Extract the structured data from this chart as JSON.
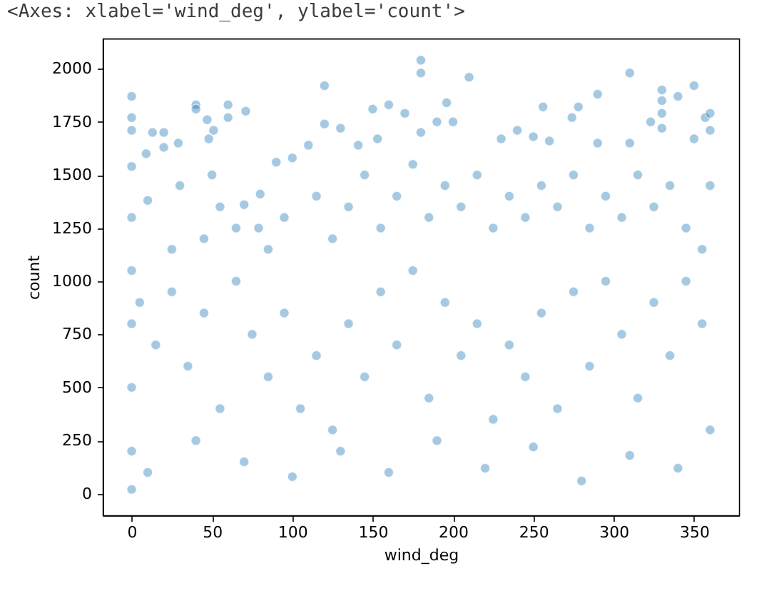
{
  "chart_data": {
    "type": "scatter",
    "xlabel": "wind_deg",
    "ylabel": "count",
    "annotations": [
      "<Axes: xlabel='wind_deg', ylabel='count'>"
    ],
    "color": "#1f77b4",
    "marker": "circle",
    "x": [
      0,
      0,
      0,
      0,
      0,
      0,
      0,
      0,
      0,
      0,
      9,
      13,
      20,
      20,
      29,
      40,
      40,
      47,
      48,
      51,
      60,
      60,
      71,
      70,
      80,
      79,
      90,
      100,
      110,
      120,
      120,
      130,
      141,
      150,
      153,
      160,
      170,
      180,
      180,
      180,
      190,
      196,
      200,
      210,
      230,
      240,
      250,
      256,
      260,
      274,
      278,
      290,
      290,
      310,
      310,
      323,
      330,
      330,
      330,
      330,
      340,
      350,
      350,
      357,
      360,
      360,
      360,
      10,
      30,
      50,
      55,
      45,
      25,
      65,
      85,
      95,
      115,
      125,
      135,
      145,
      155,
      165,
      175,
      185,
      195,
      205,
      215,
      225,
      235,
      245,
      255,
      265,
      275,
      285,
      295,
      305,
      315,
      325,
      335,
      345,
      355,
      5,
      15,
      25,
      35,
      45,
      55,
      65,
      75,
      85,
      95,
      105,
      115,
      125,
      135,
      145,
      155,
      165,
      175,
      185,
      195,
      205,
      215,
      225,
      235,
      245,
      255,
      265,
      275,
      285,
      295,
      305,
      315,
      325,
      335,
      345,
      355,
      360,
      10,
      40,
      70,
      100,
      130,
      160,
      190,
      220,
      250,
      280,
      310,
      340
    ],
    "values": [
      1870,
      1770,
      1710,
      1540,
      1300,
      1050,
      800,
      500,
      200,
      20,
      1600,
      1700,
      1700,
      1630,
      1650,
      1830,
      1810,
      1760,
      1670,
      1710,
      1830,
      1770,
      1800,
      1360,
      1410,
      1250,
      1560,
      1580,
      1640,
      1920,
      1740,
      1720,
      1640,
      1810,
      1670,
      1830,
      1790,
      2040,
      1980,
      1700,
      1750,
      1840,
      1750,
      1960,
      1670,
      1710,
      1680,
      1820,
      1660,
      1770,
      1820,
      1880,
      1650,
      1980,
      1650,
      1750,
      1900,
      1850,
      1790,
      1720,
      1870,
      1920,
      1670,
      1770,
      1790,
      1710,
      1450,
      1380,
      1450,
      1500,
      1350,
      1200,
      1150,
      1250,
      1150,
      1300,
      1400,
      1200,
      1350,
      1500,
      1250,
      1400,
      1550,
      1300,
      1450,
      1350,
      1500,
      1250,
      1400,
      1300,
      1450,
      1350,
      1500,
      1250,
      1400,
      1300,
      1500,
      1350,
      1450,
      1250,
      1150,
      900,
      700,
      950,
      600,
      850,
      400,
      1000,
      750,
      550,
      850,
      400,
      650,
      300,
      800,
      550,
      950,
      700,
      1050,
      450,
      900,
      650,
      800,
      350,
      700,
      550,
      850,
      400,
      950,
      600,
      1000,
      750,
      450,
      900,
      650,
      1000,
      800,
      300,
      100,
      250,
      150,
      80,
      200,
      100,
      250,
      120,
      220,
      60,
      180,
      120
    ],
    "xlim": [
      -18,
      378
    ],
    "ylim": [
      -102,
      2142
    ],
    "xticks": [
      0,
      50,
      100,
      150,
      200,
      250,
      300,
      350
    ],
    "yticks": [
      0,
      250,
      500,
      750,
      1000,
      1250,
      1500,
      1750,
      2000
    ]
  }
}
